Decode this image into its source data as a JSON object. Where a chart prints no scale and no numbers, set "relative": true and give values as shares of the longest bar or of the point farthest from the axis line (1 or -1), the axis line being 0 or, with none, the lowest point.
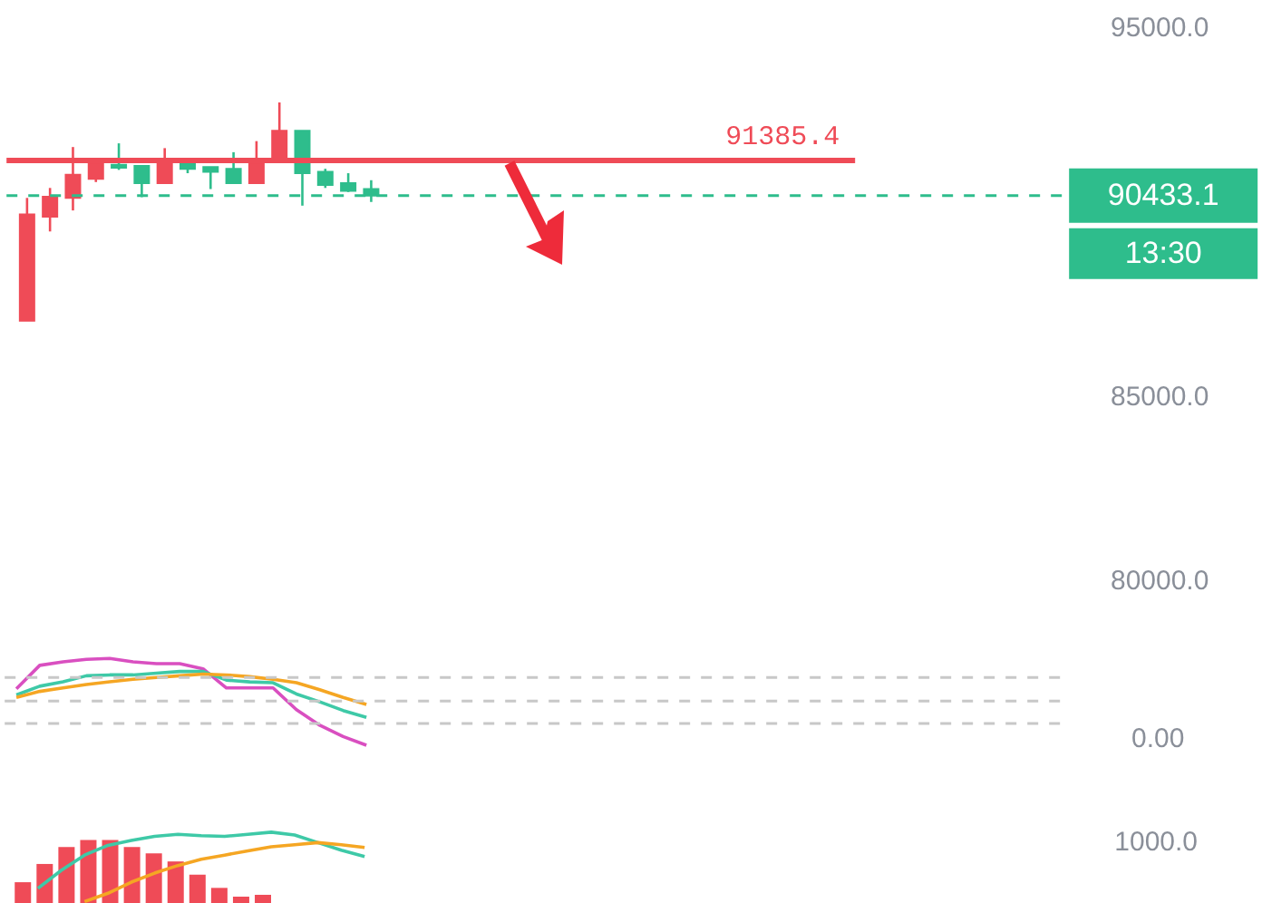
{
  "chart_data": [
    {
      "type": "candlestick",
      "categories": [
        null,
        null,
        null,
        null,
        null,
        null,
        null,
        null,
        null,
        null,
        null,
        null,
        null,
        null,
        null,
        null,
        null,
        null,
        null,
        null,
        null,
        null,
        null,
        null,
        null,
        null,
        null,
        null,
        null,
        null,
        null,
        null,
        null,
        null,
        null,
        null,
        null,
        null,
        null,
        null,
        null,
        null,
        null,
        null,
        null,
        null
      ],
      "ohlc": [
        [
          87040,
          90370,
          87040,
          89920
        ],
        [
          89860,
          90640,
          89460,
          90400
        ],
        [
          90370,
          91750,
          90030,
          91000
        ],
        [
          90890,
          91450,
          90800,
          91320
        ],
        [
          91270,
          91850,
          91130,
          91190
        ],
        [
          91240,
          91240,
          90390,
          90770
        ],
        [
          90770,
          91720,
          90770,
          91400
        ],
        [
          91400,
          91450,
          91040,
          91160
        ],
        [
          91210,
          91210,
          90610,
          91080
        ],
        [
          91160,
          91610,
          90770,
          90770
        ],
        [
          90770,
          91910,
          90770,
          91320
        ],
        [
          91350,
          92960,
          91350,
          92190
        ],
        [
          92190,
          92190,
          90160,
          91040
        ],
        [
          91080,
          91160,
          90640,
          90720
        ],
        [
          90770,
          91040,
          90530,
          90560
        ],
        [
          90610,
          90850,
          90260,
          90430
        ],
        null,
        null,
        null,
        null,
        null,
        null,
        null,
        null,
        null,
        null,
        null,
        null,
        null,
        null,
        null,
        null,
        null,
        null,
        null,
        null,
        null,
        null,
        null,
        null,
        null,
        null,
        null,
        null,
        null,
        null
      ],
      "colors": [
        "#ef4b57",
        "#ef4b57",
        "#ef4b57",
        "#ef4b57",
        "#2ebd8c",
        "#2ebd8c",
        "#ef4b57",
        "#2ebd8c",
        "#2ebd8c",
        "#2ebd8c",
        "#ef4b57",
        "#ef4b57",
        "#2ebd8c",
        "#2ebd8c",
        "#2ebd8c",
        "#2ebd8c",
        null,
        null,
        null,
        null,
        null,
        null,
        null,
        null,
        null,
        null,
        null,
        null,
        null,
        null,
        null,
        null,
        null,
        null,
        null,
        null,
        null,
        null,
        null,
        null,
        null,
        null,
        null,
        null,
        null,
        null
      ],
      "ylim": [
        80000,
        95000
      ],
      "yticks": [
        {
          "value": 80000,
          "label": "80000.0"
        },
        {
          "value": 85000,
          "label": "85000.0"
        },
        {
          "value": 95000,
          "label": "95000.0"
        }
      ],
      "ref_lines": [
        {
          "axis": "y",
          "value": 91385.4,
          "label": "91385.4",
          "color": "#ef4b57",
          "line_style": "solid"
        },
        {
          "axis": "y",
          "value": 90433.1,
          "label": "90433.1",
          "color": "#2ebd8c",
          "line_style": "dashed"
        }
      ],
      "annotations": [
        "13:30"
      ]
    },
    {
      "type": "line",
      "relative": true,
      "categories": [
        null,
        null,
        null,
        null,
        null,
        null,
        null,
        null,
        null,
        null,
        null,
        null,
        null,
        null,
        null,
        null
      ],
      "series": [
        {
          "color": "#d94fc0",
          "values": [
            0.65,
            0.92,
            0.96,
            0.99,
            1.0,
            0.96,
            0.94,
            0.94,
            0.88,
            0.66,
            0.66,
            0.66,
            0.41,
            0.23,
            0.1,
            0
          ]
        },
        {
          "color": "#3ec9a7",
          "values": [
            0.58,
            0.68,
            0.73,
            0.8,
            0.81,
            0.81,
            0.83,
            0.85,
            0.85,
            0.75,
            0.73,
            0.72,
            0.59,
            0.5,
            0.4,
            0.32
          ]
        },
        {
          "color": "#f5a623",
          "values": [
            0.55,
            0.62,
            0.66,
            0.7,
            0.73,
            0.76,
            0.78,
            0.8,
            0.82,
            0.81,
            0.79,
            0.76,
            0.72,
            0.64,
            0.55,
            0.47
          ]
        }
      ],
      "ref_lines": [
        {
          "axis": "y",
          "value": 0.78,
          "color": "#c8c8c8",
          "line_style": "dashed"
        },
        {
          "axis": "y",
          "value": 0.51,
          "color": "#c8c8c8",
          "line_style": "dashed"
        },
        {
          "axis": "y",
          "value": 0.25,
          "color": "#c8c8c8",
          "line_style": "dashed"
        }
      ],
      "annotations": [
        "0.00"
      ]
    },
    {
      "type": "bar",
      "relative": true,
      "categories": [
        null,
        null,
        null,
        null,
        null,
        null,
        null,
        null,
        null,
        null,
        null,
        null
      ],
      "series": [
        {
          "color": "#ef4b57",
          "values": [
            0.33,
            0.62,
            0.89,
            1,
            1,
            0.89,
            0.79,
            0.66,
            0.45,
            0.24,
            0.1,
            0.13
          ]
        }
      ]
    },
    {
      "type": "line",
      "relative": true,
      "categories": [
        null,
        null,
        null,
        null,
        null,
        null,
        null,
        null,
        null,
        null,
        null,
        null,
        null,
        null,
        null,
        null
      ],
      "series": [
        {
          "color": "#3ec9a7",
          "values": [
            null,
            0.19,
            0.45,
            0.67,
            0.81,
            0.88,
            0.94,
            0.97,
            0.95,
            0.94,
            0.97,
            1.0,
            0.96,
            0.85,
            0.74,
            0.65
          ]
        },
        {
          "color": "#f5a623",
          "values": [
            null,
            null,
            null,
            0,
            0.12,
            0.28,
            0.41,
            0.52,
            0.61,
            0.67,
            0.73,
            0.79,
            0.82,
            0.85,
            0.82,
            0.78
          ]
        }
      ],
      "annotations": [
        "1000.0"
      ]
    }
  ]
}
